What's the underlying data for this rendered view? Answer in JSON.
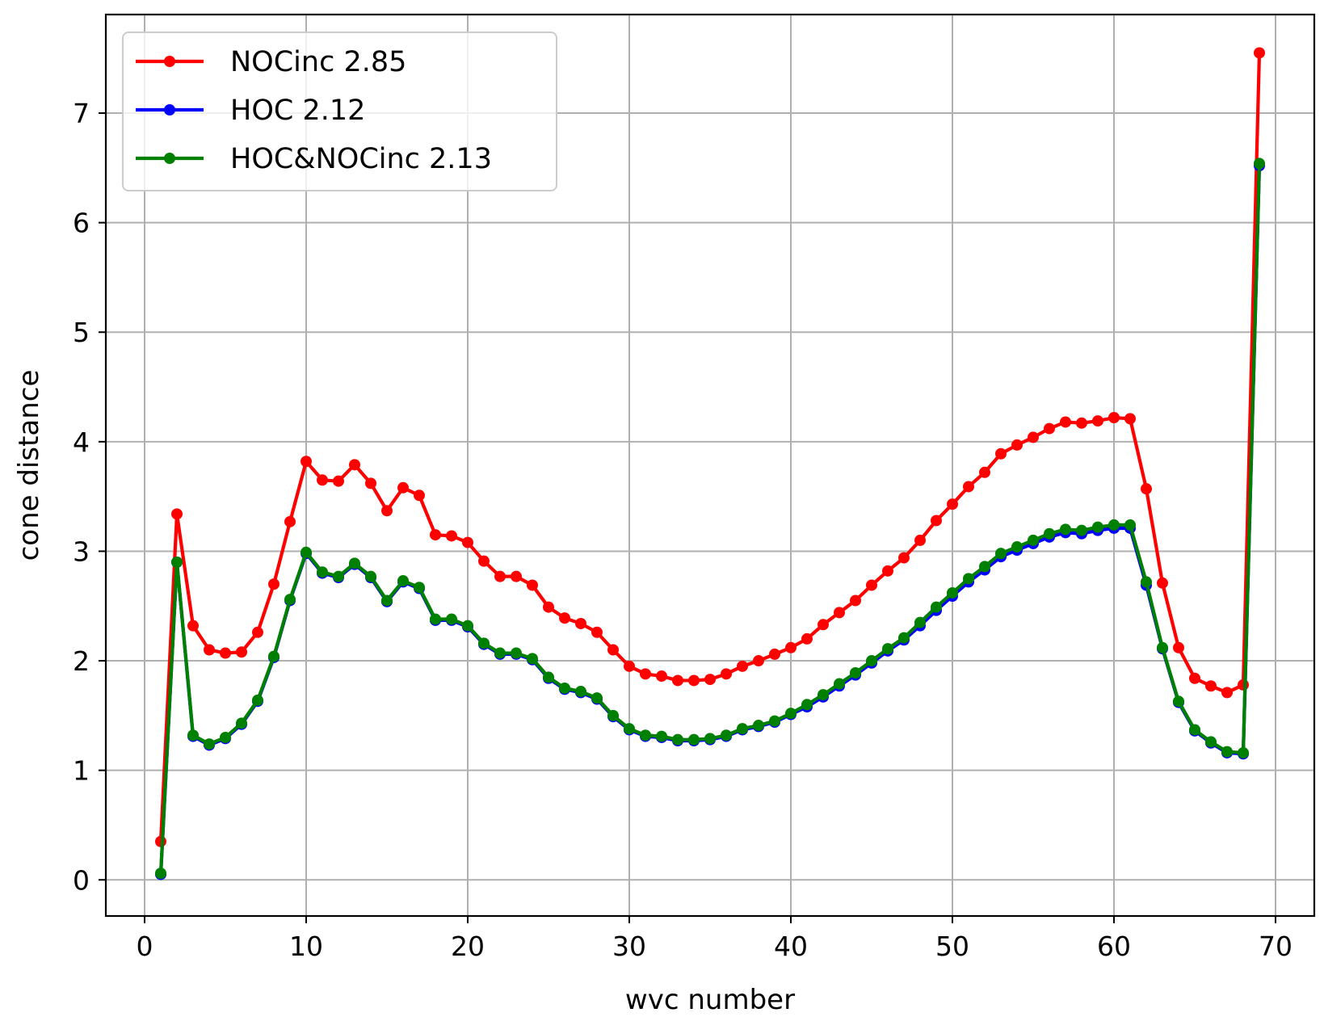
{
  "chart_data": {
    "type": "line",
    "title": "",
    "xlabel": "wvc number",
    "ylabel": "cone distance",
    "xlim": [
      -2.4,
      72.4
    ],
    "ylim": [
      -0.33,
      7.9
    ],
    "xticks": [
      0,
      10,
      20,
      30,
      40,
      50,
      60,
      70
    ],
    "yticks": [
      0,
      1,
      2,
      3,
      4,
      5,
      6,
      7
    ],
    "grid": true,
    "legend_position": "top-left",
    "x": [
      1,
      2,
      3,
      4,
      5,
      6,
      7,
      8,
      9,
      10,
      11,
      12,
      13,
      14,
      15,
      16,
      17,
      18,
      19,
      20,
      21,
      22,
      23,
      24,
      25,
      26,
      27,
      28,
      29,
      30,
      31,
      32,
      33,
      34,
      35,
      36,
      37,
      38,
      39,
      40,
      41,
      42,
      43,
      44,
      45,
      46,
      47,
      48,
      49,
      50,
      51,
      52,
      53,
      54,
      55,
      56,
      57,
      58,
      59,
      60,
      61,
      62,
      63,
      64,
      65,
      66,
      67,
      68,
      69
    ],
    "series": [
      {
        "name": "NOCinc 2.85",
        "color": "#ff0000",
        "values": [
          0.35,
          3.34,
          2.32,
          2.1,
          2.07,
          2.08,
          2.26,
          2.7,
          3.27,
          3.82,
          3.65,
          3.64,
          3.79,
          3.62,
          3.37,
          3.58,
          3.51,
          3.15,
          3.14,
          3.08,
          2.91,
          2.77,
          2.77,
          2.69,
          2.49,
          2.39,
          2.34,
          2.26,
          2.1,
          1.95,
          1.88,
          1.86,
          1.82,
          1.82,
          1.83,
          1.88,
          1.95,
          2.0,
          2.06,
          2.12,
          2.2,
          2.33,
          2.44,
          2.55,
          2.69,
          2.82,
          2.94,
          3.1,
          3.28,
          3.43,
          3.59,
          3.72,
          3.89,
          3.97,
          4.04,
          4.12,
          4.18,
          4.17,
          4.19,
          4.22,
          4.21,
          3.57,
          2.71,
          2.12,
          1.84,
          1.77,
          1.71,
          1.78,
          7.55
        ]
      },
      {
        "name": "HOC 2.12",
        "color": "#0000ff",
        "values": [
          0.05,
          2.9,
          1.31,
          1.23,
          1.29,
          1.42,
          1.63,
          2.03,
          2.55,
          2.98,
          2.8,
          2.76,
          2.88,
          2.76,
          2.54,
          2.72,
          2.66,
          2.37,
          2.37,
          2.31,
          2.15,
          2.06,
          2.06,
          2.01,
          1.84,
          1.74,
          1.71,
          1.65,
          1.49,
          1.37,
          1.31,
          1.3,
          1.27,
          1.27,
          1.28,
          1.31,
          1.37,
          1.4,
          1.44,
          1.51,
          1.58,
          1.67,
          1.77,
          1.87,
          1.98,
          2.09,
          2.19,
          2.32,
          2.46,
          2.59,
          2.72,
          2.83,
          2.95,
          3.01,
          3.07,
          3.13,
          3.17,
          3.16,
          3.19,
          3.21,
          3.21,
          2.69,
          2.11,
          1.62,
          1.36,
          1.25,
          1.16,
          1.15,
          6.52
        ]
      },
      {
        "name": "HOC&NOCinc 2.13",
        "color": "#008000",
        "values": [
          0.06,
          2.9,
          1.32,
          1.24,
          1.3,
          1.43,
          1.64,
          2.04,
          2.56,
          2.99,
          2.81,
          2.77,
          2.89,
          2.77,
          2.55,
          2.73,
          2.67,
          2.38,
          2.38,
          2.32,
          2.16,
          2.07,
          2.07,
          2.02,
          1.85,
          1.75,
          1.72,
          1.66,
          1.5,
          1.38,
          1.32,
          1.31,
          1.28,
          1.28,
          1.29,
          1.32,
          1.38,
          1.41,
          1.45,
          1.52,
          1.6,
          1.69,
          1.79,
          1.89,
          2.0,
          2.11,
          2.21,
          2.35,
          2.49,
          2.62,
          2.75,
          2.86,
          2.98,
          3.04,
          3.1,
          3.16,
          3.2,
          3.19,
          3.22,
          3.24,
          3.24,
          2.72,
          2.12,
          1.63,
          1.37,
          1.26,
          1.17,
          1.16,
          6.54
        ]
      }
    ]
  }
}
